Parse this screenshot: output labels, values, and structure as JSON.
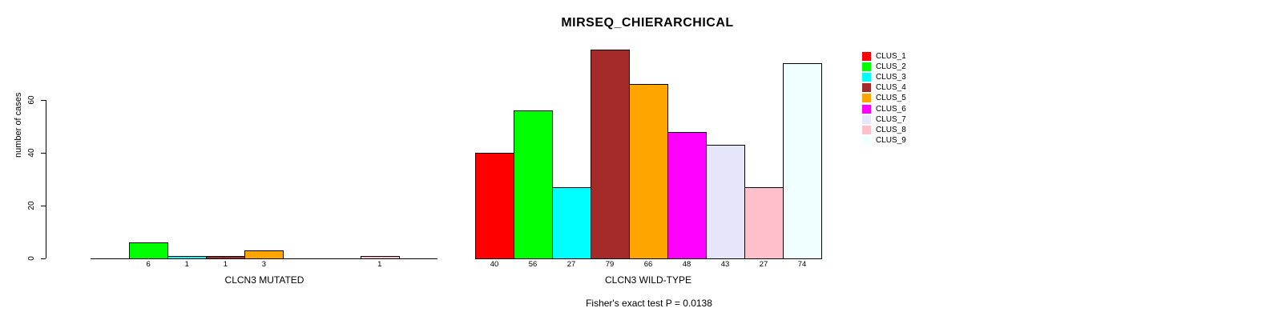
{
  "chart_data": {
    "type": "bar",
    "title": "MIRSEQ_CHIERARCHICAL",
    "ylabel": "number of cases",
    "y_ticks": [
      0,
      20,
      40,
      60
    ],
    "ylim": [
      0,
      80
    ],
    "grid": false,
    "legend_position": "right",
    "categories": [
      "CLUS_1",
      "CLUS_2",
      "CLUS_3",
      "CLUS_4",
      "CLUS_5",
      "CLUS_6",
      "CLUS_7",
      "CLUS_8",
      "CLUS_9"
    ],
    "colors": [
      "#FF0000",
      "#00FF00",
      "#00FFFF",
      "#A52A2A",
      "#FFA500",
      "#FF00FF",
      "#E6E6FA",
      "#FFC0CB",
      "#F0FFFF"
    ],
    "panels": [
      {
        "xlabel": "CLCN3 MUTATED",
        "values": [
          0,
          6,
          1,
          1,
          3,
          0,
          0,
          1,
          0
        ]
      },
      {
        "xlabel": "CLCN3 WILD-TYPE",
        "values": [
          40,
          56,
          27,
          79,
          66,
          48,
          43,
          27,
          74
        ]
      }
    ],
    "annotation": "Fisher's exact test P = 0.0138"
  }
}
